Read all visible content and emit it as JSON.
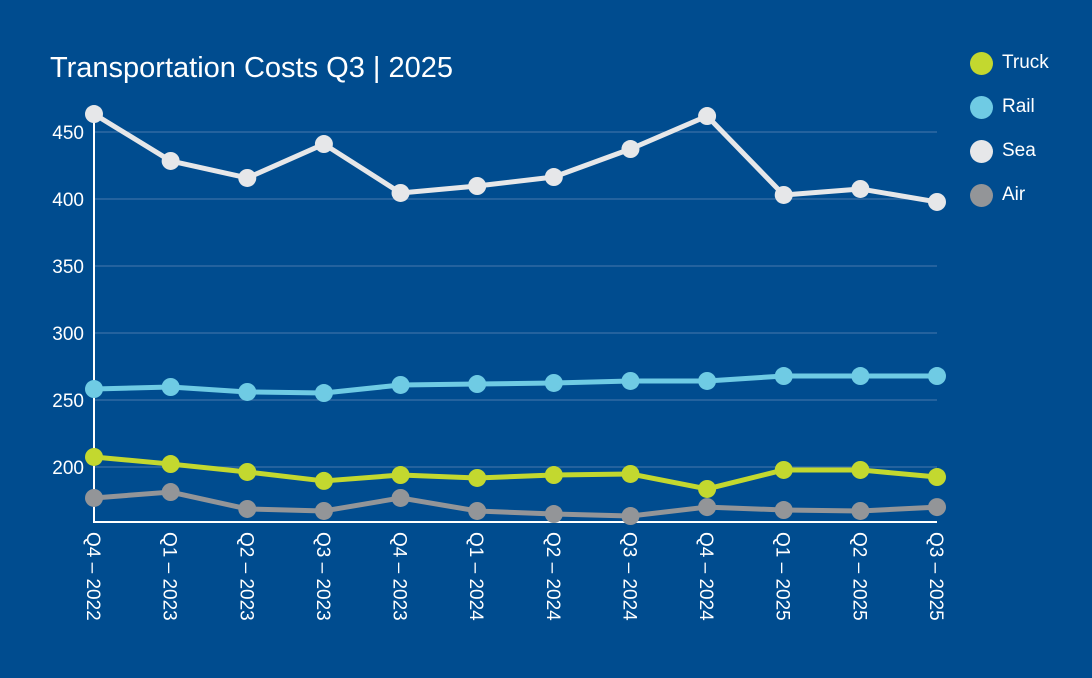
{
  "chart_data": {
    "type": "line",
    "title": "Transportation Costs Q3 | 2025",
    "xlabel": "",
    "ylabel": "",
    "categories": [
      "Q4 – 2022",
      "Q1 – 2023",
      "Q2 – 2023",
      "Q3 – 2023",
      "Q4 – 2023",
      "Q1 – 2024",
      "Q2 – 2024",
      "Q3 – 2024",
      "Q4 – 2024",
      "Q1 – 2025",
      "Q2 – 2025",
      "Q3 – 2025"
    ],
    "ylim": [
      159,
      475
    ],
    "yticks": [
      200,
      250,
      300,
      350,
      400,
      450
    ],
    "grid": true,
    "legend_position": "top-right",
    "series": [
      {
        "name": "Truck",
        "color": "#c3d82f",
        "values": [
          207.5,
          202.2,
          196.3,
          189.6,
          194.0,
          191.8,
          194.0,
          194.8,
          183.6,
          197.8,
          197.8,
          192.5
        ]
      },
      {
        "name": "Rail",
        "color": "#6fcbe4",
        "values": [
          258.2,
          259.7,
          256.0,
          255.2,
          261.2,
          261.9,
          262.7,
          264.2,
          264.2,
          267.9,
          267.9,
          267.9
        ]
      },
      {
        "name": "Sea",
        "color": "#e6e7e9",
        "values": [
          463.4,
          428.4,
          415.7,
          441.0,
          404.5,
          409.7,
          416.4,
          437.3,
          461.9,
          403.0,
          407.5,
          397.8
        ]
      },
      {
        "name": "Air",
        "color": "#939598",
        "values": [
          176.9,
          181.3,
          168.7,
          167.2,
          176.9,
          167.2,
          164.9,
          163.4,
          170.1,
          167.9,
          167.2,
          170.1
        ]
      }
    ]
  }
}
